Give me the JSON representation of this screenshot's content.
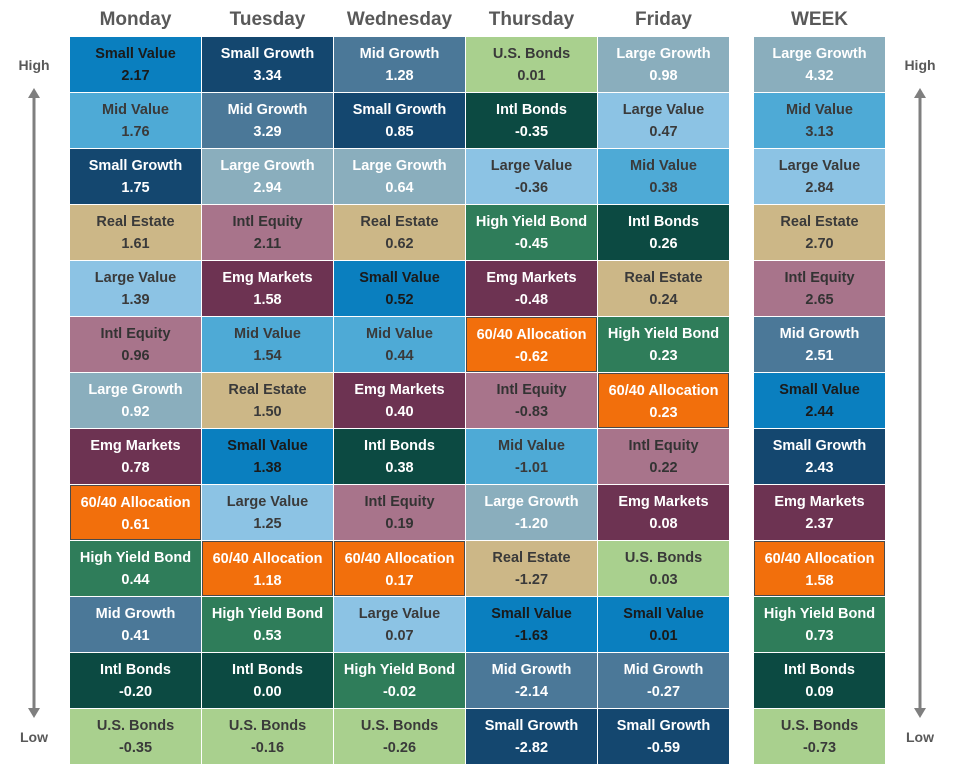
{
  "chart_data": {
    "type": "table",
    "title": "",
    "axis_labels": {
      "high": "High",
      "low": "Low"
    },
    "columns": [
      "Monday",
      "Tuesday",
      "Wednesday",
      "Thursday",
      "Friday",
      "WEEK"
    ],
    "rows": [
      [
        {
          "name": "Small Value",
          "value": "2.17"
        },
        {
          "name": "Small Growth",
          "value": "3.34"
        },
        {
          "name": "Mid Growth",
          "value": "1.28"
        },
        {
          "name": "U.S. Bonds",
          "value": "0.01"
        },
        {
          "name": "Large Growth",
          "value": "0.98"
        },
        {
          "name": "Large Growth",
          "value": "4.32"
        }
      ],
      [
        {
          "name": "Mid Value",
          "value": "1.76"
        },
        {
          "name": "Mid Growth",
          "value": "3.29"
        },
        {
          "name": "Small Growth",
          "value": "0.85"
        },
        {
          "name": "Intl Bonds",
          "value": "-0.35"
        },
        {
          "name": "Large Value",
          "value": "0.47"
        },
        {
          "name": "Mid Value",
          "value": "3.13"
        }
      ],
      [
        {
          "name": "Small Growth",
          "value": "1.75"
        },
        {
          "name": "Large Growth",
          "value": "2.94"
        },
        {
          "name": "Large Growth",
          "value": "0.64"
        },
        {
          "name": "Large Value",
          "value": "-0.36"
        },
        {
          "name": "Mid Value",
          "value": "0.38"
        },
        {
          "name": "Large Value",
          "value": "2.84"
        }
      ],
      [
        {
          "name": "Real Estate",
          "value": "1.61"
        },
        {
          "name": "Intl Equity",
          "value": "2.11"
        },
        {
          "name": "Real Estate",
          "value": "0.62"
        },
        {
          "name": "High Yield Bond",
          "value": "-0.45"
        },
        {
          "name": "Intl Bonds",
          "value": "0.26"
        },
        {
          "name": "Real Estate",
          "value": "2.70"
        }
      ],
      [
        {
          "name": "Large Value",
          "value": "1.39"
        },
        {
          "name": "Emg Markets",
          "value": "1.58"
        },
        {
          "name": "Small Value",
          "value": "0.52"
        },
        {
          "name": "Emg Markets",
          "value": "-0.48"
        },
        {
          "name": "Real Estate",
          "value": "0.24"
        },
        {
          "name": "Intl Equity",
          "value": "2.65"
        }
      ],
      [
        {
          "name": "Intl Equity",
          "value": "0.96"
        },
        {
          "name": "Mid Value",
          "value": "1.54"
        },
        {
          "name": "Mid Value",
          "value": "0.44"
        },
        {
          "name": "60/40 Allocation",
          "value": "-0.62"
        },
        {
          "name": "High Yield Bond",
          "value": "0.23"
        },
        {
          "name": "Mid Growth",
          "value": "2.51"
        }
      ],
      [
        {
          "name": "Large Growth",
          "value": "0.92"
        },
        {
          "name": "Real Estate",
          "value": "1.50"
        },
        {
          "name": "Emg Markets",
          "value": "0.40"
        },
        {
          "name": "Intl Equity",
          "value": "-0.83"
        },
        {
          "name": "60/40 Allocation",
          "value": "0.23"
        },
        {
          "name": "Small Value",
          "value": "2.44"
        }
      ],
      [
        {
          "name": "Emg Markets",
          "value": "0.78"
        },
        {
          "name": "Small Value",
          "value": "1.38"
        },
        {
          "name": "Intl Bonds",
          "value": "0.38"
        },
        {
          "name": "Mid Value",
          "value": "-1.01"
        },
        {
          "name": "Intl Equity",
          "value": "0.22"
        },
        {
          "name": "Small Growth",
          "value": "2.43"
        }
      ],
      [
        {
          "name": "60/40 Allocation",
          "value": "0.61"
        },
        {
          "name": "Large Value",
          "value": "1.25"
        },
        {
          "name": "Intl Equity",
          "value": "0.19"
        },
        {
          "name": "Large Growth",
          "value": "-1.20"
        },
        {
          "name": "Emg Markets",
          "value": "0.08"
        },
        {
          "name": "Emg Markets",
          "value": "2.37"
        }
      ],
      [
        {
          "name": "High Yield Bond",
          "value": "0.44"
        },
        {
          "name": "60/40 Allocation",
          "value": "1.18"
        },
        {
          "name": "60/40 Allocation",
          "value": "0.17"
        },
        {
          "name": "Real Estate",
          "value": "-1.27"
        },
        {
          "name": "U.S. Bonds",
          "value": "0.03"
        },
        {
          "name": "60/40 Allocation",
          "value": "1.58"
        }
      ],
      [
        {
          "name": "Mid Growth",
          "value": "0.41"
        },
        {
          "name": "High Yield Bond",
          "value": "0.53"
        },
        {
          "name": "Large Value",
          "value": "0.07"
        },
        {
          "name": "Small Value",
          "value": "-1.63"
        },
        {
          "name": "Small Value",
          "value": "0.01"
        },
        {
          "name": "High Yield Bond",
          "value": "0.73"
        }
      ],
      [
        {
          "name": "Intl Bonds",
          "value": "-0.20"
        },
        {
          "name": "Intl Bonds",
          "value": "0.00"
        },
        {
          "name": "High Yield Bond",
          "value": "-0.02"
        },
        {
          "name": "Mid Growth",
          "value": "-2.14"
        },
        {
          "name": "Mid Growth",
          "value": "-0.27"
        },
        {
          "name": "Intl Bonds",
          "value": "0.09"
        }
      ],
      [
        {
          "name": "U.S. Bonds",
          "value": "-0.35"
        },
        {
          "name": "U.S. Bonds",
          "value": "-0.16"
        },
        {
          "name": "U.S. Bonds",
          "value": "-0.26"
        },
        {
          "name": "Small Growth",
          "value": "-2.82"
        },
        {
          "name": "Small Growth",
          "value": "-0.59"
        },
        {
          "name": "U.S. Bonds",
          "value": "-0.73"
        }
      ]
    ],
    "asset_colors": {
      "Small Value": {
        "bg": "#0a7fbf",
        "fg": "#1a1a1a"
      },
      "Mid Value": {
        "bg": "#4eaad6",
        "fg": "#3a3a3a"
      },
      "Large Value": {
        "bg": "#8cc3e4",
        "fg": "#3a3a3a"
      },
      "Small Growth": {
        "bg": "#14476f",
        "fg": "#ffffff"
      },
      "Mid Growth": {
        "bg": "#4b7898",
        "fg": "#ffffff"
      },
      "Large Growth": {
        "bg": "#8aaebd",
        "fg": "#ffffff"
      },
      "Real Estate": {
        "bg": "#ccb787",
        "fg": "#3a3a3a"
      },
      "Intl Equity": {
        "bg": "#a8748b",
        "fg": "#333333"
      },
      "Emg Markets": {
        "bg": "#6d3352",
        "fg": "#ffffff"
      },
      "60/40 Allocation": {
        "bg": "#f26f0c",
        "fg": "#ffffff"
      },
      "High Yield Bond": {
        "bg": "#2f7d5a",
        "fg": "#ffffff"
      },
      "Intl Bonds": {
        "bg": "#0c4a42",
        "fg": "#ffffff"
      },
      "U.S. Bonds": {
        "bg": "#a9d08e",
        "fg": "#3a3a3a"
      }
    },
    "highlighted_asset": "60/40 Allocation",
    "arrow_color": "#7f7f7f"
  }
}
